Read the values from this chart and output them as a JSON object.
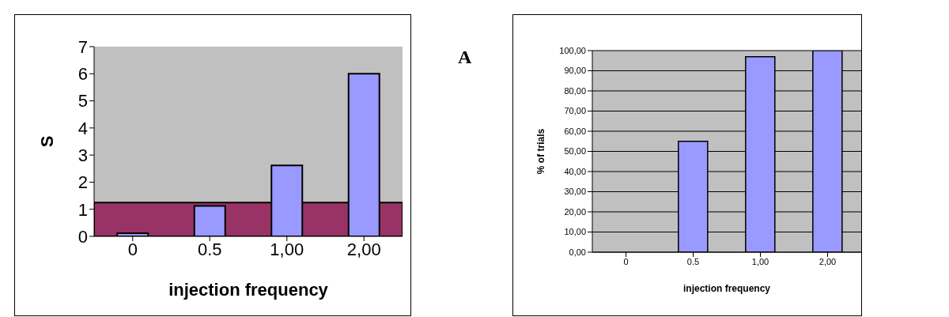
{
  "chart_data": [
    {
      "type": "bar",
      "categories": [
        "0",
        "0.5",
        "1,00",
        "2,00"
      ],
      "values": [
        0.12,
        1.12,
        2.62,
        6.0
      ],
      "color": "#9999ff",
      "xlabel": "injection frequency",
      "ylabel": "S",
      "ylim": [
        0,
        7
      ],
      "yticks": [
        0,
        1,
        2,
        3,
        4,
        5,
        6,
        7
      ],
      "grid": false,
      "bands": [
        {
          "axis": "y",
          "from": 0,
          "to": 1.25,
          "color": "#993366"
        }
      ]
    },
    {
      "type": "bar",
      "categories": [
        "0",
        "0.5",
        "1,00",
        "2,00"
      ],
      "values": [
        0,
        55,
        97,
        100
      ],
      "color": "#9999ff",
      "xlabel": "injection frequency",
      "ylabel": "% of trials",
      "ylim": [
        0,
        100
      ],
      "yticks": [
        {
          "value": 0,
          "label": "0,00"
        },
        {
          "value": 10,
          "label": "10,00"
        },
        {
          "value": 20,
          "label": "20,00"
        },
        {
          "value": 30,
          "label": "30,00"
        },
        {
          "value": 40,
          "label": "40,00"
        },
        {
          "value": 50,
          "label": "50,00"
        },
        {
          "value": 60,
          "label": "60,00"
        },
        {
          "value": 70,
          "label": "70,00"
        },
        {
          "value": 80,
          "label": "80,00"
        },
        {
          "value": 90,
          "label": "90,00"
        },
        {
          "value": 100,
          "label": "100,00"
        }
      ],
      "grid": "y",
      "annotations": [
        "A"
      ]
    }
  ]
}
